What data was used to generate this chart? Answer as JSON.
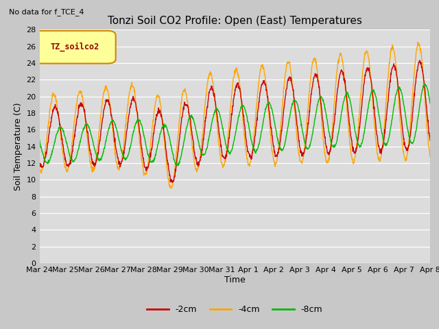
{
  "title": "Tonzi Soil CO2 Profile: Open (East) Temperatures",
  "subtitle": "No data for f_TCE_4",
  "ylabel": "Soil Temperature (C)",
  "xlabel": "Time",
  "legend_label": "TZ_soilco2",
  "ylim": [
    0,
    28
  ],
  "yticks": [
    0,
    2,
    4,
    6,
    8,
    10,
    12,
    14,
    16,
    18,
    20,
    22,
    24,
    26,
    28
  ],
  "series_labels": [
    "-2cm",
    "-4cm",
    "-8cm"
  ],
  "series_colors": [
    "#cc0000",
    "#ffa500",
    "#00bb00"
  ],
  "plot_bg_color": "#dcdcdc",
  "fig_bg_color": "#c8c8c8",
  "x_tick_labels": [
    "Mar 24",
    "Mar 25",
    "Mar 26",
    "Mar 27",
    "Mar 28",
    "Mar 29",
    "Mar 30",
    "Mar 31",
    "Apr 1",
    "Apr 2",
    "Apr 3",
    "Apr 4",
    "Apr 5",
    "Apr 6",
    "Apr 7",
    "Apr 8"
  ],
  "n_days": 15,
  "points_per_day": 96
}
